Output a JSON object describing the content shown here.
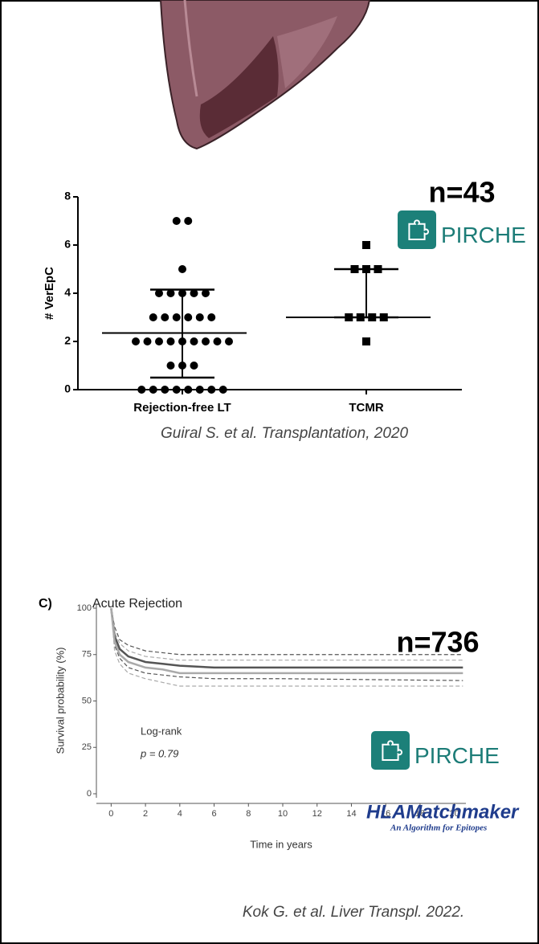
{
  "chart_data": [
    {
      "type": "dot",
      "y_label": "# VerEpC",
      "categories": [
        "Rejection-free LT",
        "TCMR"
      ],
      "values": [
        [
          7,
          7,
          5,
          4,
          4,
          4,
          4,
          4,
          3,
          3,
          3,
          3,
          3,
          3,
          2,
          2,
          2,
          2,
          2,
          2,
          2,
          2,
          2,
          1,
          1,
          1,
          0,
          0,
          0,
          0,
          0,
          0,
          0,
          0
        ],
        [
          6,
          5,
          5,
          5,
          3,
          3,
          3,
          3,
          2
        ]
      ],
      "summary": [
        {
          "center": 2.35,
          "lower": 0.5,
          "upper": 4.15
        },
        {
          "center": 3,
          "lower": 3,
          "upper": 5
        }
      ],
      "ylim": [
        0,
        8
      ],
      "yticks": [
        0,
        2,
        4,
        6,
        8
      ],
      "sample_size": "n=43",
      "logo": "PIRCHE",
      "citation": "Guiral S. et al. Transplantation, 2020"
    },
    {
      "type": "line",
      "panel": "C)",
      "title": "Acute Rejection",
      "x_label": "Time in years",
      "y_label": "Survival probability (%)",
      "xlim": [
        -1,
        21
      ],
      "xticks": [
        0,
        2,
        4,
        6,
        8,
        10,
        12,
        14,
        16,
        18,
        20
      ],
      "ylim": [
        0,
        100
      ],
      "yticks": [
        0,
        25,
        50,
        75,
        100
      ],
      "x": [
        0,
        0.2,
        0.5,
        1,
        2,
        3,
        4,
        6,
        10,
        20.5
      ],
      "series": [
        {
          "color": "#555555",
          "values": [
            100,
            85,
            78,
            74,
            71,
            70,
            69,
            68,
            68,
            68
          ],
          "lower": [
            100,
            80,
            73,
            68,
            65,
            64,
            63,
            62,
            62,
            61
          ],
          "upper": [
            100,
            90,
            83,
            80,
            77,
            76,
            75,
            75,
            75,
            75
          ]
        },
        {
          "color": "#aaaaaa",
          "values": [
            100,
            82,
            75,
            71,
            68,
            67,
            65,
            65,
            65,
            65
          ],
          "lower": [
            100,
            77,
            70,
            65,
            62,
            60,
            58,
            58,
            58,
            58
          ],
          "upper": [
            100,
            87,
            81,
            77,
            74,
            73,
            72,
            72,
            72,
            72
          ]
        }
      ],
      "annotations": [
        "Log-rank",
        "p = 0.79"
      ],
      "sample_size": "n=736",
      "logos": [
        "PIRCHE",
        "HLAMatchmaker",
        "An Algorithm for Epitopes"
      ],
      "citation": "Kok G. et al. Liver Transpl. 2022."
    }
  ]
}
